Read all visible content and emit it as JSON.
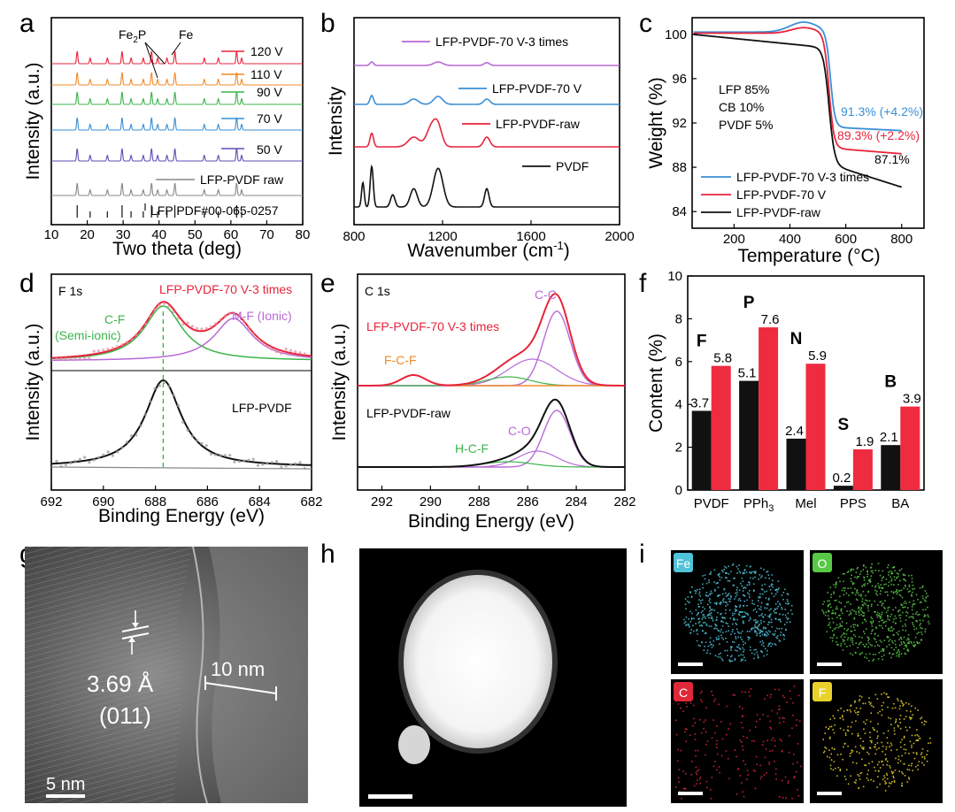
{
  "panel_labels": [
    "a",
    "b",
    "c",
    "d",
    "e",
    "f",
    "g",
    "h",
    "i"
  ],
  "colors": {
    "black": "#111111",
    "red": "#e8243b",
    "orange": "#f08a2a",
    "green": "#3cb44b",
    "blue": "#3a8fd6",
    "purple": "#5a4fb5",
    "violet": "#b86ad6",
    "gray": "#888888",
    "bar_black": "#111111",
    "bar_red": "#ef2b3f",
    "fe": "#4fc3d9",
    "o": "#58c946",
    "c": "#e0283a",
    "f": "#e8d12a"
  },
  "chart_data": [
    {
      "panel": "a",
      "type": "line",
      "xlabel": "Two theta (deg)",
      "ylabel": "Intensity (a.u.)",
      "xlim": [
        10,
        80
      ],
      "xticks": [
        "10",
        "20",
        "30",
        "40",
        "50",
        "60",
        "70",
        "80"
      ],
      "series": [
        {
          "name": "120 V"
        },
        {
          "name": "110 V"
        },
        {
          "name": "90 V"
        },
        {
          "name": "70 V"
        },
        {
          "name": "50 V"
        },
        {
          "name": "LFP-PVDF raw"
        }
      ],
      "reference": "LFP PDF#00-065-0257",
      "peak_labels": [
        "Fe2P",
        "Fe"
      ],
      "ref_peaks": [
        17.2,
        20.8,
        25.6,
        29.7,
        32.2,
        35.6,
        37.9,
        39.6,
        42.2,
        44.4,
        52.6,
        56.5,
        61.6,
        63.0
      ]
    },
    {
      "panel": "b",
      "type": "line",
      "xlabel": "Wavenumber (cm-1)",
      "ylabel": "Intensity",
      "xlim": [
        800,
        2000
      ],
      "xticks": [
        "800",
        "1200",
        "1600",
        "2000"
      ],
      "series": [
        {
          "name": "LFP-PVDF-70 V-3 times"
        },
        {
          "name": "LFP-PVDF-70 V"
        },
        {
          "name": "LFP-PVDF-raw"
        },
        {
          "name": "PVDF"
        }
      ]
    },
    {
      "panel": "c",
      "type": "line",
      "xlabel": "Temperature (°C)",
      "ylabel": "Weight (%)",
      "xlim": [
        50,
        880
      ],
      "ylim": [
        82.5,
        101.5
      ],
      "xticks": [
        "200",
        "400",
        "600",
        "800"
      ],
      "yticks": [
        "84",
        "88",
        "92",
        "96",
        "100"
      ],
      "composition": [
        "LFP 85%",
        "CB 10%",
        "PVDF 5%"
      ],
      "series": [
        {
          "name": "LFP-PVDF-70 V-3 times",
          "final": "91.3% (+4.2%)"
        },
        {
          "name": "LFP-PVDF-70 V",
          "final": "89.3% (+2.2%)"
        },
        {
          "name": "LFP-PVDF-raw",
          "final": "87.1%"
        }
      ]
    },
    {
      "panel": "d",
      "type": "line",
      "title": "F 1s",
      "xlabel": "Binding Energy (eV)",
      "ylabel": "Intensity (a.u.)",
      "xlim": [
        692,
        682
      ],
      "xticks": [
        "692",
        "690",
        "688",
        "686",
        "684",
        "682"
      ],
      "peaks": [
        {
          "name": "C-F (Semi-ionic)",
          "center": 687.7
        },
        {
          "name": "M-F (Ionic)",
          "center": 685.0
        }
      ],
      "series": [
        {
          "name": "LFP-PVDF-70 V-3 times"
        },
        {
          "name": "LFP-PVDF"
        }
      ],
      "peak_label_1": "C-F",
      "peak_label_1b": "(Semi-ionic)",
      "peak_label_2": "M-F (Ionic)"
    },
    {
      "panel": "e",
      "type": "line",
      "title": "C 1s",
      "xlabel": "Binding Energy (eV)",
      "ylabel": "Intensity (a.u.)",
      "xlim": [
        293,
        282
      ],
      "xticks": [
        "292",
        "290",
        "288",
        "286",
        "284",
        "282"
      ],
      "series": [
        {
          "name": "LFP-PVDF-70 V-3 times"
        },
        {
          "name": "LFP-PVDF-raw"
        }
      ],
      "peaks": [
        "C-C",
        "F-C-F",
        "C-O",
        "H-C-F"
      ]
    },
    {
      "panel": "f",
      "type": "bar",
      "ylabel": "Content (%)",
      "ylim": [
        0,
        10
      ],
      "yticks": [
        "0",
        "2",
        "4",
        "6",
        "8",
        "10"
      ],
      "categories": [
        "PVDF",
        "PPh3",
        "Mel",
        "PPS",
        "BA"
      ],
      "category_sub": [
        "",
        "3",
        "",
        "",
        ""
      ],
      "category_base": [
        "PVDF",
        "PPh",
        "Mel",
        "PPS",
        "BA"
      ],
      "element_labels": [
        "F",
        "P",
        "N",
        "S",
        "B"
      ],
      "series": [
        {
          "name": "black",
          "values": [
            3.7,
            5.1,
            2.4,
            0.2,
            2.1
          ],
          "labels": [
            "3.7",
            "5.1",
            "2.4",
            "0.2",
            "2.1"
          ]
        },
        {
          "name": "red",
          "values": [
            5.8,
            7.6,
            5.9,
            1.9,
            3.9
          ],
          "labels": [
            "5.8",
            "7.6",
            "5.9",
            "1.9",
            "3.9"
          ]
        }
      ]
    }
  ],
  "g": {
    "spacing": "3.69 Å",
    "plane": "(011)",
    "layer": "10 nm",
    "scale": "5 nm"
  },
  "i": {
    "maps": [
      "Fe",
      "O",
      "C",
      "F"
    ]
  },
  "a_title_fe2p_main": "Fe",
  "a_title_fe2p_sub": "2",
  "a_title_fe2p_tail": "P",
  "b_unit_main": "Wavenumber (cm",
  "b_unit_sup": "-1",
  "b_unit_tail": ")"
}
